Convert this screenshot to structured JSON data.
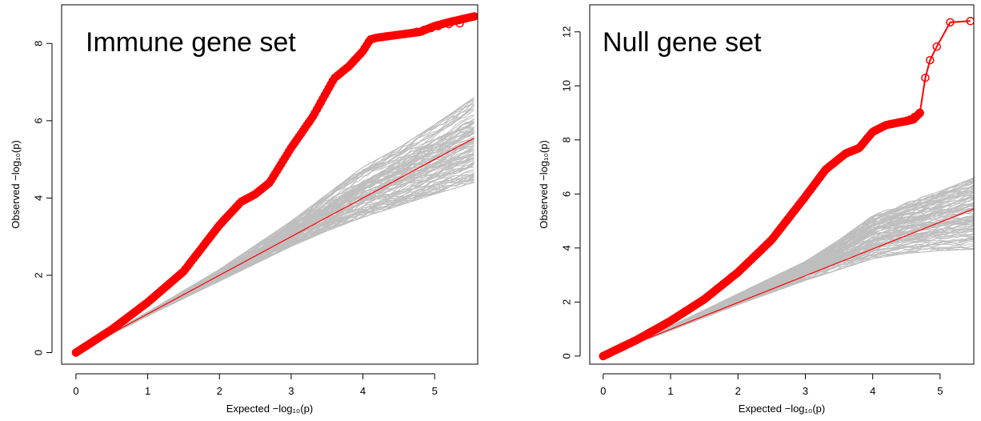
{
  "chart_data": [
    {
      "type": "line",
      "title": "Immune gene set",
      "xlabel": "Expected  −log₁₀(p)",
      "ylabel": "Observed  −log₁₀(p)",
      "xlim": [
        -0.2,
        5.6
      ],
      "ylim": [
        -0.3,
        9.0
      ],
      "x_ticks": [
        "0",
        "1",
        "2",
        "3",
        "4",
        "5"
      ],
      "y_ticks": [
        "0",
        "2",
        "4",
        "6",
        "8"
      ],
      "grid": false,
      "colors": {
        "observed": "#ff0000",
        "null": "#bebebe",
        "reference": "#ff0000"
      },
      "reference_line": {
        "x": [
          0,
          5.55
        ],
        "y": [
          0,
          5.55
        ]
      },
      "observed": {
        "x": [
          0,
          0.5,
          1.0,
          1.5,
          2.0,
          2.3,
          2.5,
          2.7,
          3.0,
          3.3,
          3.6,
          3.8,
          4.0,
          4.1,
          4.2,
          4.4,
          4.6,
          4.8,
          5.0,
          5.2,
          5.55
        ],
        "y": [
          0,
          0.6,
          1.3,
          2.1,
          3.3,
          3.9,
          4.1,
          4.4,
          5.3,
          6.1,
          7.1,
          7.4,
          7.8,
          8.1,
          8.15,
          8.2,
          8.25,
          8.3,
          8.45,
          8.55,
          8.7
        ],
        "marker_x": [
          4.75,
          4.85,
          4.95,
          5.05,
          5.2,
          5.35,
          5.55
        ],
        "marker_y": [
          8.3,
          8.35,
          8.4,
          8.45,
          8.5,
          8.52,
          8.7
        ]
      },
      "null_band": {
        "x": [
          0,
          1.0,
          2.0,
          3.0,
          3.5,
          4.0,
          4.5,
          5.0,
          5.55
        ],
        "low": [
          0,
          0.95,
          1.85,
          2.75,
          3.15,
          3.5,
          3.8,
          4.1,
          4.4
        ],
        "high": [
          0,
          1.05,
          2.15,
          3.4,
          4.1,
          4.8,
          5.3,
          5.9,
          6.6
        ]
      }
    },
    {
      "type": "line",
      "title": "Null gene set",
      "xlabel": "Expected  −log₁₀(p)",
      "ylabel": "Observed  −log₁₀(p)",
      "xlim": [
        -0.2,
        5.5
      ],
      "ylim": [
        -0.3,
        13.0
      ],
      "x_ticks": [
        "0",
        "1",
        "2",
        "3",
        "4",
        "5"
      ],
      "y_ticks": [
        "0",
        "2",
        "4",
        "6",
        "8",
        "10",
        "12"
      ],
      "grid": false,
      "colors": {
        "observed": "#ff0000",
        "null": "#bebebe",
        "reference": "#ff0000"
      },
      "reference_line": {
        "x": [
          0,
          5.5
        ],
        "y": [
          0,
          5.45
        ]
      },
      "observed": {
        "x": [
          0,
          0.5,
          1.0,
          1.5,
          2.0,
          2.5,
          3.0,
          3.3,
          3.6,
          3.8,
          4.0,
          4.2,
          4.4,
          4.6,
          4.7
        ],
        "y": [
          0,
          0.6,
          1.3,
          2.1,
          3.1,
          4.3,
          5.9,
          6.9,
          7.5,
          7.7,
          8.3,
          8.55,
          8.65,
          8.75,
          9.0
        ],
        "marker_x": [
          4.55,
          4.62,
          4.7,
          4.78,
          4.85,
          4.95,
          5.15,
          5.45
        ],
        "marker_y": [
          8.75,
          8.85,
          9.0,
          10.3,
          10.95,
          11.45,
          12.35,
          12.4
        ]
      },
      "null_band": {
        "x": [
          0,
          1.0,
          2.0,
          3.0,
          3.5,
          4.0,
          4.5,
          5.0,
          5.5
        ],
        "low": [
          0,
          0.95,
          1.9,
          2.8,
          3.2,
          3.6,
          3.8,
          3.9,
          3.95
        ],
        "high": [
          0,
          1.1,
          2.3,
          3.5,
          4.3,
          5.2,
          5.7,
          6.1,
          6.6
        ]
      }
    }
  ]
}
